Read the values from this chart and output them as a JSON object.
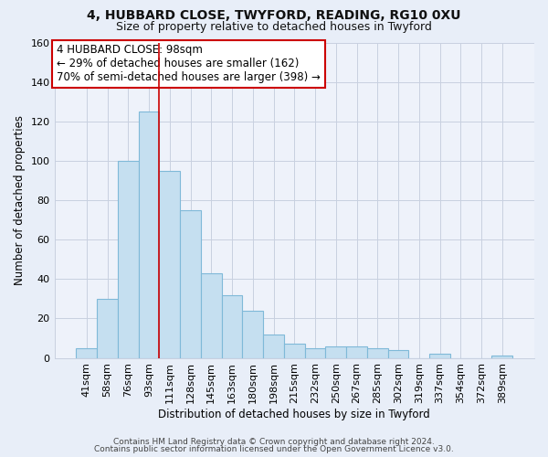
{
  "title1": "4, HUBBARD CLOSE, TWYFORD, READING, RG10 0XU",
  "title2": "Size of property relative to detached houses in Twyford",
  "xlabel": "Distribution of detached houses by size in Twyford",
  "ylabel": "Number of detached properties",
  "bar_labels": [
    "41sqm",
    "58sqm",
    "76sqm",
    "93sqm",
    "111sqm",
    "128sqm",
    "145sqm",
    "163sqm",
    "180sqm",
    "198sqm",
    "215sqm",
    "232sqm",
    "250sqm",
    "267sqm",
    "285sqm",
    "302sqm",
    "319sqm",
    "337sqm",
    "354sqm",
    "372sqm",
    "389sqm"
  ],
  "bar_values": [
    5,
    30,
    100,
    125,
    95,
    75,
    43,
    32,
    24,
    12,
    7,
    5,
    6,
    6,
    5,
    4,
    0,
    2,
    0,
    0,
    1
  ],
  "bar_color": "#c5dff0",
  "bar_edge_color": "#7fb9d8",
  "vline_color": "#cc0000",
  "vline_x": 3.5,
  "ann_text_line1": "4 HUBBARD CLOSE: 98sqm",
  "ann_text_line2": "← 29% of detached houses are smaller (162)",
  "ann_text_line3": "70% of semi-detached houses are larger (398) →",
  "ylim": [
    0,
    160
  ],
  "yticks": [
    0,
    20,
    40,
    60,
    80,
    100,
    120,
    140,
    160
  ],
  "footer1": "Contains HM Land Registry data © Crown copyright and database right 2024.",
  "footer2": "Contains public sector information licensed under the Open Government Licence v3.0.",
  "bg_color": "#e8eef8",
  "plot_bg_color": "#eef2fa",
  "grid_color": "#c8d0e0",
  "title1_fontsize": 10,
  "title2_fontsize": 9,
  "xlabel_fontsize": 8.5,
  "ylabel_fontsize": 8.5,
  "tick_fontsize": 8,
  "ann_fontsize": 8.5,
  "footer_fontsize": 6.5
}
